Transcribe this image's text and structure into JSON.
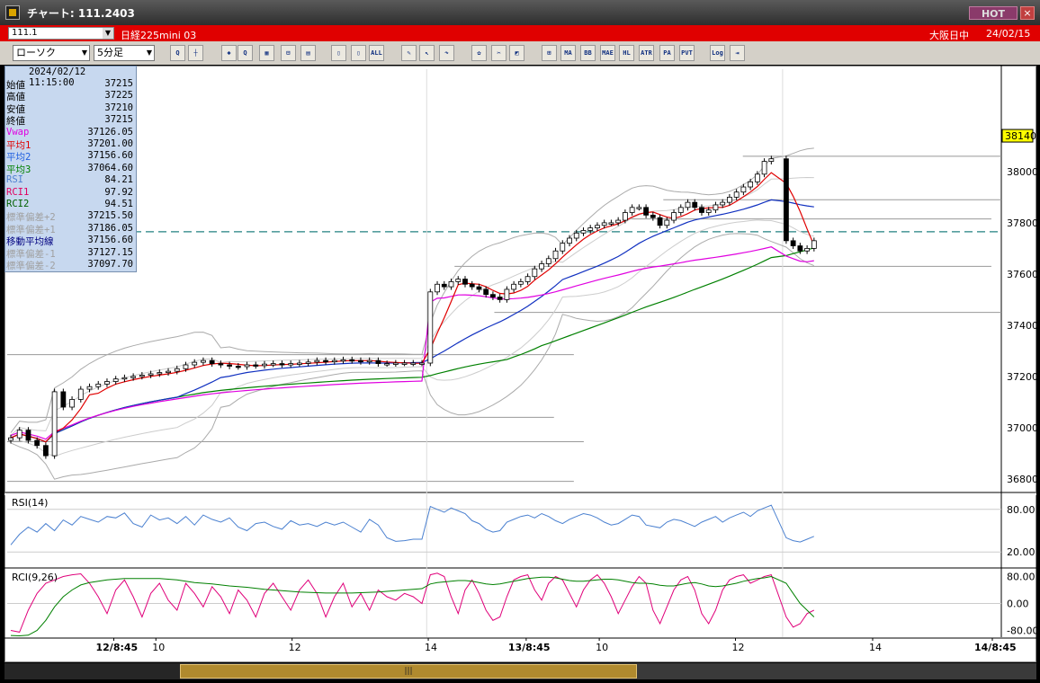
{
  "window": {
    "title": "チャート: 111.2403",
    "hot_label": "HOT",
    "close_label": "×"
  },
  "infobar": {
    "symbol": "111.1",
    "instrument": "日経225mini 03",
    "market": "大阪日中",
    "date": "24/02/15"
  },
  "toolbar": {
    "chart_type": "ローソク",
    "interval": "5分足",
    "buttons": [
      {
        "name": "zoom-button",
        "label": "Q"
      },
      {
        "name": "crosshair-button",
        "label": "┼"
      },
      {
        "name": "tool-3-button",
        "label": "✱"
      },
      {
        "name": "tool-4-button",
        "label": "Q"
      },
      {
        "name": "tool-5-button",
        "label": "▦"
      },
      {
        "name": "tool-6-button",
        "label": "⊟"
      },
      {
        "name": "tool-7-button",
        "label": "▤"
      },
      {
        "name": "tool-8-button",
        "label": "▯"
      },
      {
        "name": "tool-9-button",
        "label": "▯"
      },
      {
        "name": "all-button",
        "label": "ALL"
      },
      {
        "name": "pen-button",
        "label": "✎"
      },
      {
        "name": "pointer-button",
        "label": "↖"
      },
      {
        "name": "redo-button",
        "label": "↷"
      },
      {
        "name": "settings-button",
        "label": "✿"
      },
      {
        "name": "tools-button",
        "label": "✂"
      },
      {
        "name": "color-button",
        "label": "◩"
      },
      {
        "name": "ma-grid-button",
        "label": "⊞"
      },
      {
        "name": "ma-button",
        "label": "MA"
      },
      {
        "name": "bb-button",
        "label": "BB"
      },
      {
        "name": "mae-button",
        "label": "MAE"
      },
      {
        "name": "hl-button",
        "label": "HL"
      },
      {
        "name": "atr-button",
        "label": "ATR"
      },
      {
        "name": "pa-button",
        "label": "PA"
      },
      {
        "name": "pvt-button",
        "label": "PVT"
      },
      {
        "name": "log-button",
        "label": "Log"
      },
      {
        "name": "export-button",
        "label": "⇥"
      }
    ]
  },
  "info_panel": {
    "timestamp": "2024/02/12 11:15:00",
    "rows": [
      {
        "label": "始値",
        "value": "37215",
        "color": "#000000"
      },
      {
        "label": "高値",
        "value": "37225",
        "color": "#000000"
      },
      {
        "label": "安値",
        "value": "37210",
        "color": "#000000"
      },
      {
        "label": "終値",
        "value": "37215",
        "color": "#000000"
      },
      {
        "label": "Vwap",
        "value": "37126.05",
        "color": "#e000e0"
      },
      {
        "label": "平均1",
        "value": "37201.00",
        "color": "#e00000"
      },
      {
        "label": "平均2",
        "value": "37156.60",
        "color": "#2060e0"
      },
      {
        "label": "平均3",
        "value": "37064.60",
        "color": "#008000"
      },
      {
        "label": "RSI",
        "value": "84.21",
        "color": "#5080d0"
      },
      {
        "label": "RCI1",
        "value": "97.92",
        "color": "#e00060"
      },
      {
        "label": "RCI2",
        "value": "94.51",
        "color": "#006000"
      },
      {
        "label": "標準偏差+2",
        "value": "37215.50",
        "color": "#a0a0a0"
      },
      {
        "label": "標準偏差+1",
        "value": "37186.05",
        "color": "#a0a0a0"
      },
      {
        "label": "移動平均線",
        "value": "37156.60",
        "color": "#000080"
      },
      {
        "label": "標準偏差-1",
        "value": "37127.15",
        "color": "#a0a0a0"
      },
      {
        "label": "標準偏差-2",
        "value": "37097.70",
        "color": "#a0a0a0"
      }
    ]
  },
  "chart_data": [
    {
      "type": "candlestick",
      "name": "price",
      "ylim": [
        36750,
        38400
      ],
      "yticks": [
        "38000",
        "37800",
        "37600",
        "37400",
        "37200",
        "37000",
        "36800"
      ],
      "price_label": "38140",
      "xticks": [
        "12/8:45",
        "10",
        "12",
        "14",
        "13/8:45",
        "10",
        "12",
        "14",
        "14/8:45"
      ],
      "xtick_bars": [
        0,
        32,
        64,
        96,
        128,
        160,
        192,
        224,
        256
      ],
      "session_breaks_bars": [
        128,
        256
      ],
      "close": [
        36960,
        36990,
        36950,
        36930,
        36890,
        37140,
        37080,
        37110,
        37150,
        37160,
        37170,
        37180,
        37190,
        37195,
        37200,
        37205,
        37210,
        37215,
        37220,
        37230,
        37245,
        37255,
        37262,
        37250,
        37245,
        37240,
        37238,
        37245,
        37242,
        37248,
        37250,
        37246,
        37250,
        37252,
        37256,
        37262,
        37258,
        37262,
        37265,
        37262,
        37258,
        37262,
        37250,
        37250,
        37252,
        37252,
        37252,
        37252,
        37530,
        37560,
        37550,
        37570,
        37580,
        37560,
        37550,
        37540,
        37520,
        37510,
        37500,
        37540,
        37560,
        37570,
        37590,
        37620,
        37640,
        37660,
        37690,
        37720,
        37740,
        37760,
        37770,
        37780,
        37790,
        37800,
        37800,
        37810,
        37840,
        37860,
        37860,
        37830,
        37820,
        37790,
        37810,
        37840,
        37860,
        37880,
        37860,
        37840,
        37850,
        37870,
        37880,
        37900,
        37920,
        37940,
        37960,
        37990,
        38040,
        38050,
        37730,
        37710,
        37690,
        37700,
        37730
      ],
      "candle_x_frac": [
        0.0,
        0.0088,
        0.0176,
        0.0264,
        0.0352,
        0.044,
        0.0528,
        0.0616,
        0.0704,
        0.0792,
        0.088,
        0.0968,
        0.1056,
        0.1144,
        0.1232,
        0.132,
        0.1408,
        0.1496,
        0.1584,
        0.1672,
        0.176,
        0.1848,
        0.1936,
        0.2024,
        0.2112,
        0.22,
        0.2288,
        0.2376,
        0.2464,
        0.2552,
        0.264,
        0.2728,
        0.2816,
        0.2904,
        0.2992,
        0.308,
        0.3168,
        0.3256,
        0.3344,
        0.3432,
        0.352,
        0.3608,
        0.3696,
        0.3784,
        0.3872,
        0.396,
        0.4048,
        0.4136,
        0.422,
        0.429,
        0.436,
        0.443,
        0.45,
        0.457,
        0.464,
        0.471,
        0.478,
        0.485,
        0.492,
        0.499,
        0.506,
        0.513,
        0.52,
        0.527,
        0.534,
        0.541,
        0.548,
        0.555,
        0.562,
        0.569,
        0.576,
        0.583,
        0.59,
        0.597,
        0.604,
        0.611,
        0.618,
        0.625,
        0.632,
        0.639,
        0.646,
        0.653,
        0.66,
        0.667,
        0.674,
        0.681,
        0.688,
        0.695,
        0.702,
        0.709,
        0.716,
        0.723,
        0.73,
        0.737,
        0.744,
        0.751,
        0.758,
        0.765,
        0.78,
        0.787,
        0.794,
        0.801,
        0.808
      ],
      "horizontal_levels": [
        38060,
        37890,
        37815,
        37630,
        37450,
        37285,
        37040,
        36945,
        36790
      ],
      "dashed_level": 37765
    },
    {
      "type": "line",
      "name": "RSI(14)",
      "ylim": [
        0,
        100
      ],
      "yticks": [
        "80.00",
        "20.00"
      ],
      "values": [
        30,
        45,
        55,
        48,
        60,
        50,
        65,
        58,
        70,
        66,
        62,
        70,
        68,
        75,
        60,
        55,
        72,
        65,
        68,
        60,
        70,
        58,
        72,
        66,
        62,
        68,
        55,
        50,
        60,
        62,
        56,
        52,
        64,
        58,
        60,
        56,
        62,
        58,
        62,
        55,
        48,
        66,
        58,
        40,
        35,
        36,
        38,
        38,
        84,
        80,
        76,
        82,
        78,
        74,
        64,
        60,
        52,
        48,
        50,
        62,
        66,
        70,
        72,
        68,
        74,
        70,
        64,
        60,
        66,
        70,
        74,
        72,
        68,
        62,
        58,
        60,
        66,
        72,
        70,
        58,
        56,
        54,
        62,
        66,
        64,
        60,
        56,
        62,
        66,
        70,
        62,
        68,
        72,
        76,
        70,
        78,
        82,
        86,
        40,
        36,
        34,
        38,
        42
      ]
    },
    {
      "type": "line",
      "name": "RCI(9,26)",
      "ylim": [
        -100,
        100
      ],
      "yticks": [
        "80.00",
        "0.00",
        "-80.00"
      ],
      "series": [
        {
          "name": "RCI1",
          "color": "#e0007a",
          "values": [
            -80,
            -85,
            -20,
            30,
            60,
            70,
            80,
            85,
            88,
            60,
            20,
            -30,
            40,
            70,
            20,
            -40,
            30,
            60,
            10,
            -20,
            60,
            30,
            -10,
            50,
            20,
            -30,
            40,
            10,
            -40,
            30,
            60,
            20,
            -20,
            40,
            70,
            30,
            -40,
            20,
            60,
            -10,
            30,
            -20,
            40,
            20,
            10,
            30,
            20,
            0,
            85,
            90,
            80,
            20,
            -30,
            40,
            70,
            30,
            -20,
            -50,
            -40,
            20,
            70,
            80,
            85,
            40,
            10,
            60,
            80,
            70,
            30,
            -10,
            40,
            70,
            85,
            60,
            20,
            -30,
            10,
            50,
            80,
            60,
            -20,
            -60,
            -10,
            40,
            70,
            80,
            40,
            -30,
            -60,
            -20,
            40,
            70,
            80,
            85,
            60,
            70,
            80,
            85,
            -40,
            -70,
            -60,
            -30,
            -20
          ]
        },
        {
          "name": "RCI2",
          "color": "#008000",
          "values": [
            -95,
            -96,
            -94,
            -80,
            -50,
            -10,
            20,
            40,
            55,
            62,
            66,
            70,
            72,
            74,
            74,
            74,
            74,
            74,
            72,
            70,
            66,
            62,
            60,
            58,
            55,
            52,
            50,
            48,
            45,
            42,
            40,
            38,
            36,
            34,
            33,
            32,
            31,
            31,
            31,
            31,
            32,
            33,
            34,
            36,
            38,
            40,
            42,
            44,
            58,
            62,
            64,
            66,
            68,
            68,
            66,
            62,
            58,
            56,
            58,
            62,
            66,
            70,
            74,
            76,
            78,
            78,
            76,
            72,
            68,
            66,
            66,
            68,
            70,
            72,
            72,
            70,
            66,
            62,
            60,
            60,
            58,
            54,
            52,
            52,
            56,
            60,
            62,
            58,
            52,
            50,
            52,
            56,
            60,
            66,
            70,
            74,
            76,
            80,
            60,
            30,
            0,
            -20,
            -40
          ]
        }
      ]
    }
  ]
}
